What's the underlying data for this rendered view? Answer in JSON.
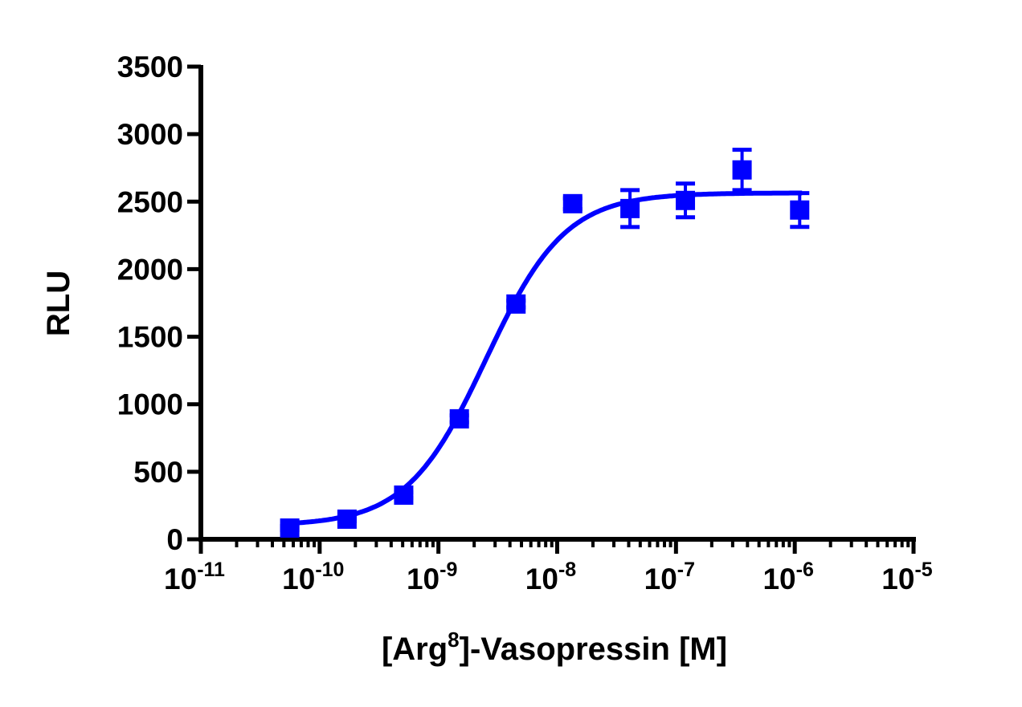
{
  "chart_data": {
    "type": "scatter",
    "title": "",
    "xlabel": "[Arg8]-Vasopressin [M]",
    "xlabel_parts": {
      "base": "[Arg",
      "sup": "8",
      "rest": "]-Vasopressin [M]"
    },
    "ylabel": "RLU",
    "xscale": "log",
    "xlim": [
      1e-11,
      1e-05
    ],
    "ylim": [
      0,
      3500
    ],
    "x_ticks": [
      {
        "base": "10",
        "exp": "-11"
      },
      {
        "base": "10",
        "exp": "-10"
      },
      {
        "base": "10",
        "exp": "-9"
      },
      {
        "base": "10",
        "exp": "-8"
      },
      {
        "base": "10",
        "exp": "-7"
      },
      {
        "base": "10",
        "exp": "-6"
      },
      {
        "base": "10",
        "exp": "-5"
      }
    ],
    "y_ticks": [
      "0",
      "500",
      "1000",
      "1500",
      "2000",
      "2500",
      "3000",
      "3500"
    ],
    "grid": false,
    "color": "#0000ff",
    "marker": "square",
    "points": [
      {
        "x": 5.6e-11,
        "y": 83,
        "err": 15
      },
      {
        "x": 1.7e-10,
        "y": 149,
        "err": 15
      },
      {
        "x": 5.1e-10,
        "y": 327,
        "err": 20
      },
      {
        "x": 1.5e-09,
        "y": 892,
        "err": 25
      },
      {
        "x": 4.5e-09,
        "y": 1742,
        "err": 25
      },
      {
        "x": 1.35e-08,
        "y": 2485,
        "err": 40
      },
      {
        "x": 4.1e-08,
        "y": 2449,
        "err": 137
      },
      {
        "x": 1.2e-07,
        "y": 2509,
        "err": 125
      },
      {
        "x": 3.6e-07,
        "y": 2735,
        "err": 149
      },
      {
        "x": 1.1e-06,
        "y": 2438,
        "err": 125
      }
    ],
    "fit": {
      "model": "4PL sigmoidal",
      "bottom": 100,
      "top": 2565,
      "logEC50": -8.6,
      "hill": 1.3
    }
  }
}
